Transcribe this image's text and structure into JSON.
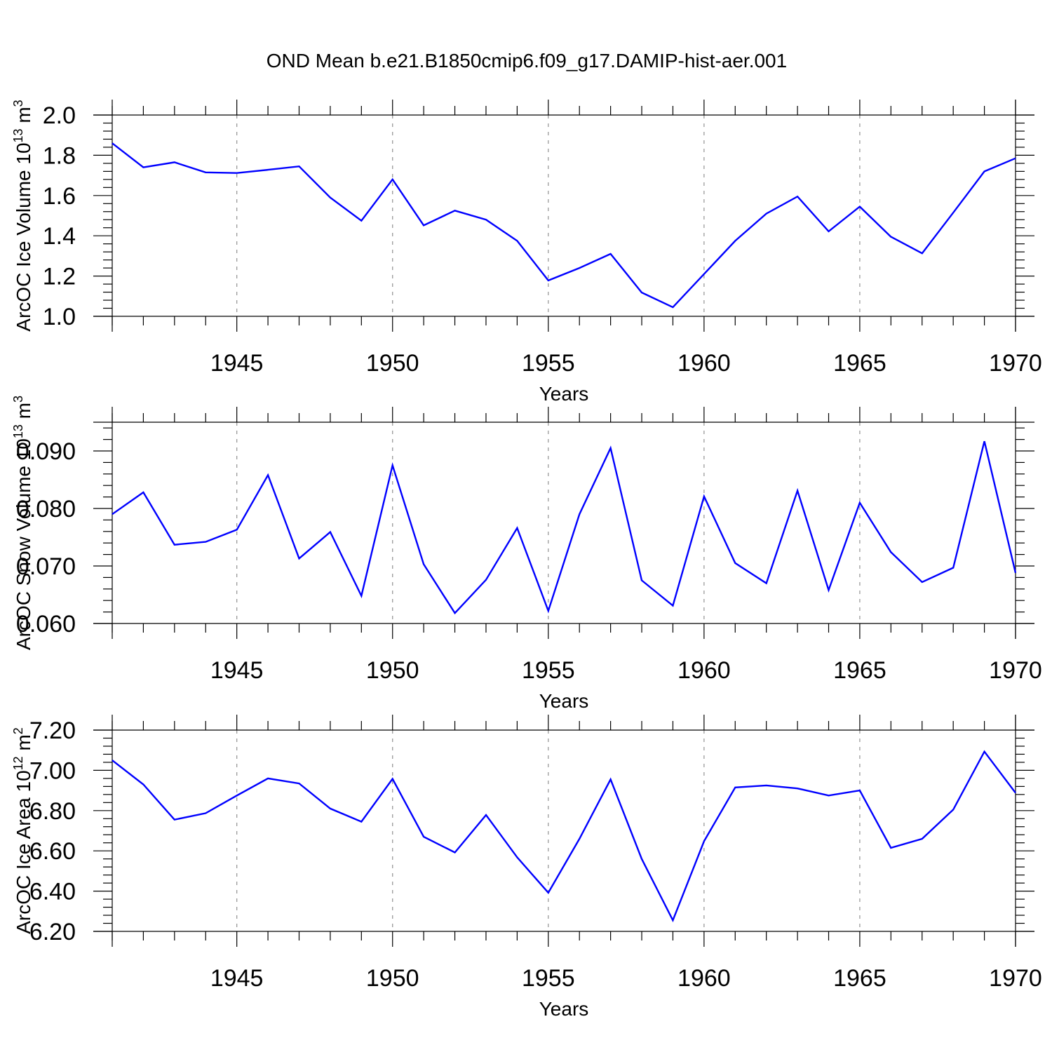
{
  "figure": {
    "title": "OND Mean b.e21.B1850cmip6.f09_g17.DAMIP-hist-aer.001"
  },
  "chart_data": [
    {
      "type": "line",
      "name": "ice-volume",
      "ylabel": "ArcOC Ice Volume 10",
      "ylabel_exp": "13",
      "ylabel_unit": " m",
      "ylabel_unit_exp": "3",
      "xlabel": "Years",
      "xlim": [
        1941,
        1970
      ],
      "ylim": [
        1.0,
        2.0
      ],
      "yticks": [
        1.0,
        1.2,
        1.4,
        1.6,
        1.8,
        2.0
      ],
      "ytick_labels": [
        "1.0",
        "1.2",
        "1.4",
        "1.6",
        "1.8",
        "2.0"
      ],
      "xticks": [
        1945,
        1950,
        1955,
        1960,
        1965,
        1970
      ],
      "xtick_labels": [
        "1945",
        "1950",
        "1955",
        "1960",
        "1965",
        "1970"
      ],
      "color": "#0000ff",
      "x": [
        1941,
        1942,
        1943,
        1944,
        1945,
        1946,
        1947,
        1948,
        1949,
        1950,
        1951,
        1952,
        1953,
        1954,
        1955,
        1956,
        1957,
        1958,
        1959,
        1960,
        1961,
        1962,
        1963,
        1964,
        1965,
        1966,
        1967,
        1968,
        1969,
        1970
      ],
      "values": [
        1.86,
        1.74,
        1.765,
        1.715,
        1.712,
        1.728,
        1.745,
        1.59,
        1.475,
        1.68,
        1.452,
        1.525,
        1.48,
        1.375,
        1.178,
        1.24,
        1.31,
        1.118,
        1.045,
        1.21,
        1.375,
        1.51,
        1.595,
        1.422,
        1.545,
        1.395,
        1.313,
        1.515,
        1.72,
        1.785
      ]
    },
    {
      "type": "line",
      "name": "snow-volume",
      "ylabel": "ArcOC Snow Volume 10",
      "ylabel_exp": "13",
      "ylabel_unit": " m",
      "ylabel_unit_exp": "3",
      "xlabel": "Years",
      "xlim": [
        1941,
        1970
      ],
      "ylim": [
        0.06,
        0.095
      ],
      "yticks": [
        0.06,
        0.07,
        0.08,
        0.09
      ],
      "ytick_labels": [
        "0.060",
        "0.070",
        "0.080",
        "0.090"
      ],
      "xticks": [
        1945,
        1950,
        1955,
        1960,
        1965,
        1970
      ],
      "xtick_labels": [
        "1945",
        "1950",
        "1955",
        "1960",
        "1965",
        "1970"
      ],
      "color": "#0000ff",
      "x": [
        1941,
        1942,
        1943,
        1944,
        1945,
        1946,
        1947,
        1948,
        1949,
        1950,
        1951,
        1952,
        1953,
        1954,
        1955,
        1956,
        1957,
        1958,
        1959,
        1960,
        1961,
        1962,
        1963,
        1964,
        1965,
        1966,
        1967,
        1968,
        1969,
        1970
      ],
      "values": [
        0.079,
        0.0828,
        0.0737,
        0.0742,
        0.0763,
        0.0858,
        0.0713,
        0.0759,
        0.0648,
        0.0875,
        0.0703,
        0.0618,
        0.0676,
        0.0766,
        0.0622,
        0.079,
        0.0905,
        0.0675,
        0.0631,
        0.0821,
        0.0705,
        0.067,
        0.0831,
        0.0658,
        0.081,
        0.0724,
        0.0672,
        0.0697,
        0.0917,
        0.0688
      ]
    },
    {
      "type": "line",
      "name": "ice-area",
      "ylabel": "ArcOC Ice Area 10",
      "ylabel_exp": "12",
      "ylabel_unit": " m",
      "ylabel_unit_exp": "2",
      "xlabel": "Years",
      "xlim": [
        1941,
        1970
      ],
      "ylim": [
        6.2,
        7.2
      ],
      "yticks": [
        6.2,
        6.4,
        6.6,
        6.8,
        7.0,
        7.2
      ],
      "ytick_labels": [
        "6.20",
        "6.40",
        "6.60",
        "6.80",
        "7.00",
        "7.20"
      ],
      "xticks": [
        1945,
        1950,
        1955,
        1960,
        1965,
        1970
      ],
      "xtick_labels": [
        "1945",
        "1950",
        "1955",
        "1960",
        "1965",
        "1970"
      ],
      "color": "#0000ff",
      "x": [
        1941,
        1942,
        1943,
        1944,
        1945,
        1946,
        1947,
        1948,
        1949,
        1950,
        1951,
        1952,
        1953,
        1954,
        1955,
        1956,
        1957,
        1958,
        1959,
        1960,
        1961,
        1962,
        1963,
        1964,
        1965,
        1966,
        1967,
        1968,
        1969,
        1970
      ],
      "values": [
        7.05,
        6.93,
        6.755,
        6.787,
        6.875,
        6.96,
        6.935,
        6.81,
        6.745,
        6.958,
        6.67,
        6.592,
        6.778,
        6.568,
        6.392,
        6.66,
        6.955,
        6.56,
        6.255,
        6.648,
        6.915,
        6.925,
        6.91,
        6.875,
        6.9,
        6.615,
        6.66,
        6.805,
        7.093,
        6.888
      ]
    }
  ]
}
